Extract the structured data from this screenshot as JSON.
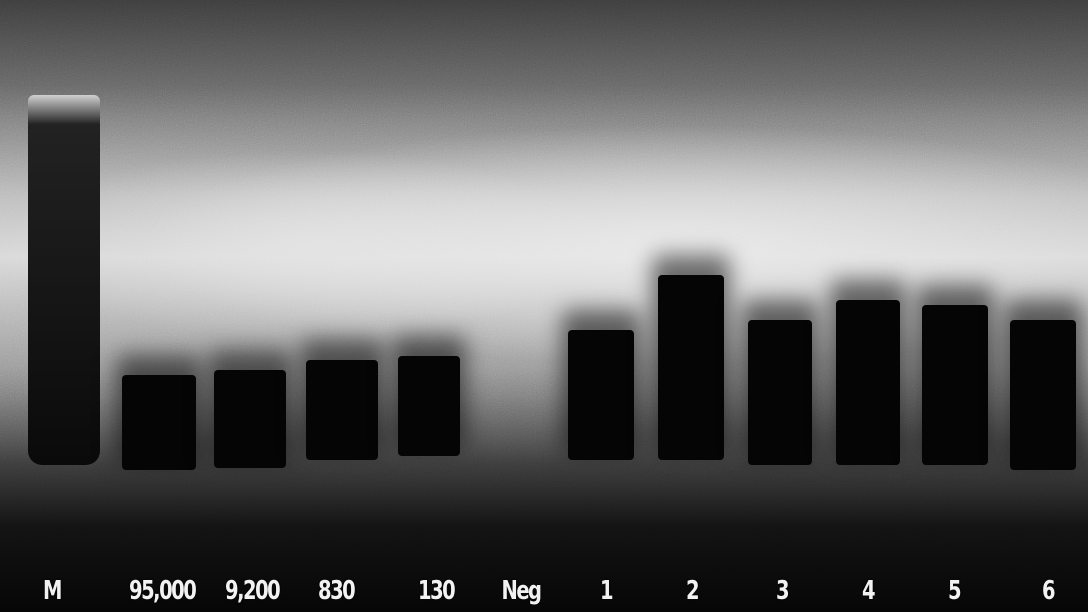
{
  "lanes": [
    {
      "id": "M",
      "label": "M"
    },
    {
      "id": "95000",
      "label": "95,000"
    },
    {
      "id": "9200",
      "label": "9,200"
    },
    {
      "id": "830",
      "label": "830"
    },
    {
      "id": "130",
      "label": "130"
    },
    {
      "id": "neg",
      "label": "Neg"
    },
    {
      "id": "s1",
      "label": "1"
    },
    {
      "id": "s2",
      "label": "2"
    },
    {
      "id": "s3",
      "label": "3"
    },
    {
      "id": "s4",
      "label": "4"
    },
    {
      "id": "s5",
      "label": "5"
    },
    {
      "id": "s6",
      "label": "6"
    }
  ]
}
